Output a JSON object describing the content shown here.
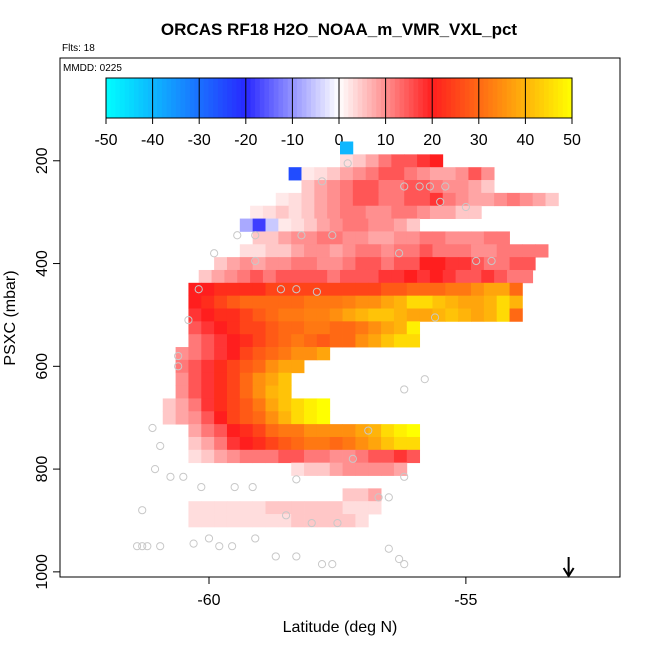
{
  "chart_data": {
    "type": "heatmap",
    "title": "ORCAS RF18 H2O_NOAA_m_VMR_VXL_pct",
    "flights_label": "Flts: 18",
    "date_label": "MMDD: 0225",
    "xlabel": "Latitude (deg N)",
    "ylabel": "PSXC (mbar)",
    "xlim": [
      -62.9,
      -52.0
    ],
    "ylim_inverted": [
      1010,
      0
    ],
    "x_ticks": [
      -60,
      -55
    ],
    "x_tick_labels": [
      "-60",
      "-55"
    ],
    "y_ticks": [
      200,
      400,
      600,
      800,
      1000
    ],
    "y_tick_labels": [
      "200",
      "400",
      "600",
      "800",
      "1000"
    ],
    "colorbar": {
      "min": -50,
      "max": 50,
      "ticks": [
        -50,
        -40,
        -30,
        -20,
        -10,
        0,
        10,
        20,
        30,
        40,
        50
      ],
      "tick_labels": [
        "-50",
        "-40",
        "-30",
        "-20",
        "-10",
        "0",
        "10",
        "20",
        "30",
        "40",
        "50"
      ]
    },
    "cell_size": {
      "dlat": 0.25,
      "dp": 25
    },
    "rows": [
      {
        "p": 175,
        "lat0": -57.45,
        "values": [
          -40
        ]
      },
      {
        "p": 200,
        "lat0": -57.45,
        "values": [
          3,
          5,
          8,
          12,
          15,
          15,
          18,
          20
        ]
      },
      {
        "p": 225,
        "lat0": -58.45,
        "values": [
          -25,
          2,
          3,
          5,
          8,
          10,
          12,
          15,
          15,
          12,
          10,
          8,
          8,
          10,
          15,
          10
        ]
      },
      {
        "p": 250,
        "lat0": -58.2,
        "values": [
          5,
          8,
          10,
          12,
          15,
          15,
          12,
          12,
          15,
          15,
          12,
          10,
          10,
          8,
          5
        ]
      },
      {
        "p": 275,
        "lat0": -58.7,
        "values": [
          2,
          3,
          5,
          8,
          10,
          12,
          15,
          15,
          12,
          12,
          15,
          15,
          18,
          12,
          10,
          8,
          8,
          10,
          12,
          10,
          8,
          5
        ]
      },
      {
        "p": 300,
        "lat0": -59.2,
        "values": [
          2,
          3,
          5,
          3,
          5,
          8,
          10,
          12,
          12,
          10,
          10,
          12,
          12,
          10,
          8,
          8,
          5,
          5
        ]
      },
      {
        "p": 325,
        "lat0": -59.4,
        "values": [
          -8,
          -18,
          -5,
          2,
          3,
          5,
          8,
          10,
          12,
          12,
          10,
          10,
          8,
          5
        ]
      },
      {
        "p": 350,
        "lat0": -59.15,
        "values": [
          5,
          5,
          8,
          10,
          10,
          12,
          12,
          10,
          10,
          8,
          8,
          10,
          10,
          12,
          12,
          10,
          10,
          10,
          12,
          12
        ]
      },
      {
        "p": 375,
        "lat0": -59.4,
        "values": [
          3,
          3,
          5,
          5,
          8,
          10,
          10,
          8,
          10,
          12,
          12,
          10,
          12,
          12,
          15,
          12,
          12,
          12,
          10,
          10,
          12,
          12,
          12,
          12
        ]
      },
      {
        "p": 400,
        "lat0": -59.9,
        "values": [
          5,
          8,
          10,
          8,
          10,
          10,
          12,
          12,
          10,
          10,
          12,
          15,
          15,
          12,
          15,
          15,
          20,
          20,
          18,
          18,
          15,
          12,
          12,
          15,
          15
        ]
      },
      {
        "p": 425,
        "lat0": -60.2,
        "values": [
          5,
          8,
          10,
          12,
          15,
          12,
          15,
          15,
          15,
          15,
          12,
          15,
          15,
          15,
          18,
          18,
          20,
          18,
          20,
          18,
          15,
          15,
          18,
          15,
          12,
          12
        ]
      },
      {
        "p": 450,
        "lat0": -60.4,
        "values": [
          20,
          20,
          22,
          22,
          22,
          22,
          25,
          25,
          25,
          25,
          25,
          25,
          25,
          25,
          25,
          28,
          28,
          30,
          30,
          30,
          32,
          32,
          35,
          38,
          38,
          30
        ]
      },
      {
        "p": 475,
        "lat0": -60.4,
        "values": [
          20,
          22,
          25,
          28,
          30,
          30,
          30,
          30,
          30,
          32,
          32,
          32,
          33,
          35,
          35,
          38,
          40,
          45,
          45,
          42,
          40,
          38,
          38,
          40,
          45,
          40
        ]
      },
      {
        "p": 500,
        "lat0": -60.4,
        "values": [
          18,
          20,
          22,
          22,
          25,
          28,
          30,
          32,
          32,
          33,
          33,
          35,
          38,
          40,
          42,
          42,
          40,
          38,
          38,
          40,
          42,
          40,
          38,
          40,
          45,
          30
        ]
      },
      {
        "p": 525,
        "lat0": -60.4,
        "values": [
          15,
          18,
          20,
          22,
          25,
          25,
          28,
          30,
          30,
          32,
          32,
          30,
          30,
          32,
          35,
          38,
          40,
          48
        ]
      },
      {
        "p": 550,
        "lat0": -60.4,
        "values": [
          12,
          15,
          18,
          20,
          22,
          25,
          28,
          30,
          32,
          30,
          28,
          30,
          30,
          35,
          38,
          42,
          45,
          45
        ]
      },
      {
        "p": 575,
        "lat0": -60.65,
        "values": [
          10,
          12,
          15,
          18,
          20,
          25,
          28,
          30,
          32,
          35,
          35,
          38
        ]
      },
      {
        "p": 600,
        "lat0": -60.65,
        "values": [
          12,
          15,
          18,
          22,
          25,
          28,
          30,
          35,
          38,
          38
        ]
      },
      {
        "p": 625,
        "lat0": -60.65,
        "values": [
          10,
          15,
          18,
          22,
          25,
          30,
          35,
          38,
          42
        ]
      },
      {
        "p": 650,
        "lat0": -60.65,
        "values": [
          10,
          15,
          18,
          22,
          25,
          30,
          35,
          40,
          42
        ]
      },
      {
        "p": 675,
        "lat0": -60.9,
        "values": [
          5,
          8,
          12,
          18,
          22,
          25,
          28,
          32,
          38,
          42,
          45,
          48,
          50
        ]
      },
      {
        "p": 700,
        "lat0": -60.9,
        "values": [
          5,
          8,
          10,
          15,
          20,
          25,
          28,
          30,
          35,
          40,
          45,
          48,
          50
        ]
      },
      {
        "p": 725,
        "lat0": -60.4,
        "values": [
          8,
          12,
          15,
          20,
          22,
          25,
          30,
          32,
          32,
          35,
          35,
          35,
          35,
          38,
          40,
          45,
          48,
          50
        ]
      },
      {
        "p": 750,
        "lat0": -60.4,
        "values": [
          5,
          8,
          12,
          18,
          20,
          22,
          25,
          28,
          30,
          32,
          32,
          30,
          32,
          35,
          38,
          42,
          45,
          45
        ]
      },
      {
        "p": 775,
        "lat0": -60.4,
        "values": [
          3,
          5,
          8,
          10,
          12,
          12,
          12,
          15,
          15,
          12,
          12,
          10,
          10,
          12,
          15,
          15,
          18,
          15
        ]
      },
      {
        "p": 800,
        "lat0": -58.4,
        "values": [
          3,
          5,
          5,
          8,
          10,
          10,
          10,
          10,
          8
        ]
      },
      {
        "p": 850,
        "lat0": -57.4,
        "values": [
          5,
          5,
          8
        ]
      },
      {
        "p": 875,
        "lat0": -60.4,
        "values": [
          3,
          3,
          3,
          3,
          3,
          3,
          5,
          5,
          5,
          5,
          5,
          5,
          3,
          3,
          3
        ]
      },
      {
        "p": 900,
        "lat0": -60.4,
        "values": [
          3,
          3,
          3,
          3,
          3,
          3,
          3,
          3,
          5,
          5,
          5,
          5,
          5,
          3
        ]
      }
    ],
    "points": [
      [
        -57.3,
        205
      ],
      [
        -57.8,
        240
      ],
      [
        -56.2,
        250
      ],
      [
        -55.9,
        250
      ],
      [
        -55.7,
        250
      ],
      [
        -55.4,
        250
      ],
      [
        -55.5,
        280
      ],
      [
        -55.0,
        290
      ],
      [
        -59.1,
        345
      ],
      [
        -59.45,
        345
      ],
      [
        -58.2,
        345
      ],
      [
        -57.6,
        345
      ],
      [
        -59.9,
        380
      ],
      [
        -59.1,
        395
      ],
      [
        -56.3,
        380
      ],
      [
        -54.8,
        395
      ],
      [
        -54.5,
        395
      ],
      [
        -60.2,
        450
      ],
      [
        -58.6,
        450
      ],
      [
        -58.3,
        450
      ],
      [
        -57.9,
        455
      ],
      [
        -60.4,
        510
      ],
      [
        -55.6,
        505
      ],
      [
        -60.6,
        580
      ],
      [
        -60.6,
        600
      ],
      [
        -56.2,
        645
      ],
      [
        -55.8,
        625
      ],
      [
        -61.1,
        720
      ],
      [
        -60.95,
        755
      ],
      [
        -56.9,
        725
      ],
      [
        -57.2,
        780
      ],
      [
        -61.05,
        800
      ],
      [
        -60.75,
        815
      ],
      [
        -60.5,
        815
      ],
      [
        -60.15,
        835
      ],
      [
        -59.5,
        835
      ],
      [
        -59.15,
        835
      ],
      [
        -58.3,
        820
      ],
      [
        -56.2,
        815
      ],
      [
        -56.7,
        855
      ],
      [
        -56.5,
        855
      ],
      [
        -61.3,
        880
      ],
      [
        -58.5,
        890
      ],
      [
        -58.0,
        905
      ],
      [
        -57.5,
        905
      ],
      [
        -60.0,
        935
      ],
      [
        -60.3,
        945
      ],
      [
        -59.8,
        950
      ],
      [
        -59.55,
        950
      ],
      [
        -59.1,
        935
      ],
      [
        -61.4,
        950
      ],
      [
        -61.3,
        950
      ],
      [
        -61.2,
        950
      ],
      [
        -60.95,
        950
      ],
      [
        -58.7,
        970
      ],
      [
        -58.3,
        970
      ],
      [
        -57.6,
        985
      ],
      [
        -57.8,
        985
      ],
      [
        -56.5,
        955
      ],
      [
        -56.3,
        975
      ],
      [
        -56.2,
        985
      ]
    ],
    "arrow_lat": -53.0
  }
}
